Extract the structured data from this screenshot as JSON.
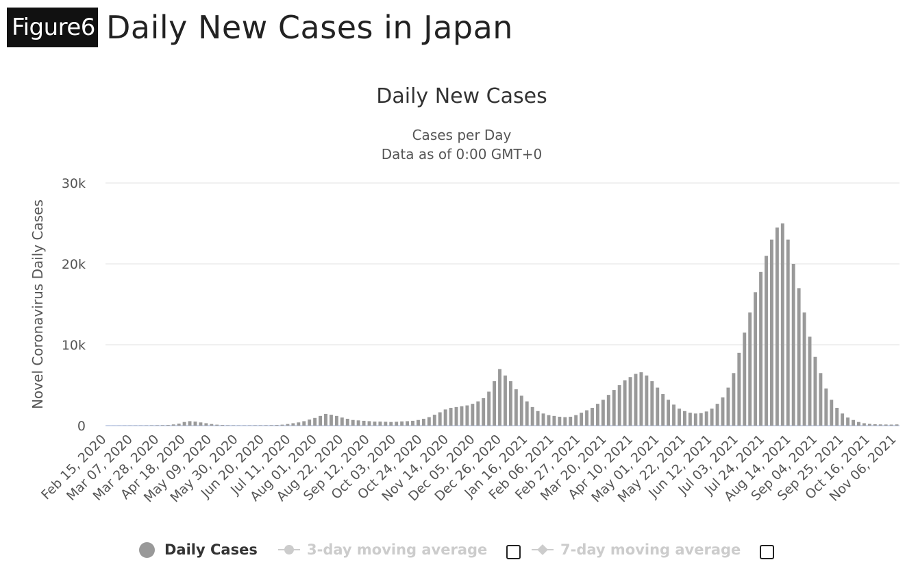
{
  "figure": {
    "badge": "Figure6",
    "title": "Daily New Cases in Japan"
  },
  "chart_data": {
    "type": "bar",
    "title": "Daily New Cases",
    "subtitle_lines": [
      "Cases per Day",
      "Data as of 0:00 GMT+0"
    ],
    "ylabel": "Novel Coronavirus Daily Cases",
    "xlabel": "",
    "ylim": [
      0,
      30000
    ],
    "y_ticks": [
      0,
      10000,
      20000,
      30000
    ],
    "y_tick_labels": [
      "0",
      "10k",
      "20k",
      "30k"
    ],
    "grid": true,
    "x_tick_labels": [
      "Feb 15, 2020",
      "Mar 07, 2020",
      "Mar 28, 2020",
      "Apr 18, 2020",
      "May 09, 2020",
      "May 30, 2020",
      "Jun 20, 2020",
      "Jul 11, 2020",
      "Aug 01, 2020",
      "Aug 22, 2020",
      "Sep 12, 2020",
      "Oct 03, 2020",
      "Oct 24, 2020",
      "Nov 14, 2020",
      "Dec 05, 2020",
      "Dec 26, 2020",
      "Jan 16, 2021",
      "Feb 06, 2021",
      "Feb 27, 2021",
      "Mar 20, 2021",
      "Apr 10, 2021",
      "May 01, 2021",
      "May 22, 2021",
      "Jun 12, 2021",
      "Jul 03, 2021",
      "Jul 24, 2021",
      "Aug 14, 2021",
      "Sep 04, 2021",
      "Sep 25, 2021",
      "Oct 16, 2021",
      "Nov 06, 2021"
    ],
    "series": [
      {
        "name": "Daily Cases",
        "color": "#999999",
        "x_start": "Feb 15, 2020",
        "x_step_days": 3,
        "values": [
          5,
          5,
          10,
          15,
          20,
          20,
          25,
          30,
          40,
          50,
          60,
          80,
          150,
          250,
          450,
          550,
          500,
          400,
          300,
          200,
          120,
          80,
          50,
          40,
          30,
          30,
          35,
          45,
          45,
          50,
          60,
          80,
          120,
          200,
          300,
          400,
          550,
          750,
          950,
          1200,
          1450,
          1350,
          1200,
          1000,
          850,
          700,
          650,
          600,
          550,
          500,
          500,
          480,
          450,
          480,
          520,
          550,
          600,
          700,
          850,
          1050,
          1350,
          1650,
          2000,
          2200,
          2300,
          2400,
          2500,
          2700,
          3000,
          3400,
          4200,
          5500,
          7000,
          6200,
          5500,
          4500,
          3700,
          3000,
          2300,
          1800,
          1500,
          1300,
          1200,
          1100,
          1050,
          1100,
          1300,
          1600,
          1900,
          2200,
          2700,
          3200,
          3800,
          4400,
          5000,
          5600,
          6000,
          6400,
          6600,
          6200,
          5500,
          4700,
          3900,
          3200,
          2600,
          2100,
          1800,
          1600,
          1500,
          1550,
          1750,
          2100,
          2700,
          3500,
          4700,
          6500,
          9000,
          11500,
          14000,
          16500,
          19000,
          21000,
          23000,
          24500,
          25000,
          23000,
          20000,
          17000,
          14000,
          11000,
          8500,
          6500,
          4600,
          3200,
          2200,
          1500,
          1000,
          700,
          450,
          300,
          220,
          180,
          150,
          140,
          130,
          150
        ]
      },
      {
        "name": "3-day moving average",
        "visible": false
      },
      {
        "name": "7-day moving average",
        "visible": false
      }
    ],
    "legend_position": "bottom-center"
  },
  "legend": [
    {
      "label": "Daily Cases",
      "active": true,
      "color": "#999999"
    },
    {
      "label": "3-day moving average",
      "active": false,
      "color": "#cccccc"
    },
    {
      "label": "7-day moving average",
      "active": false,
      "color": "#cccccc"
    }
  ]
}
